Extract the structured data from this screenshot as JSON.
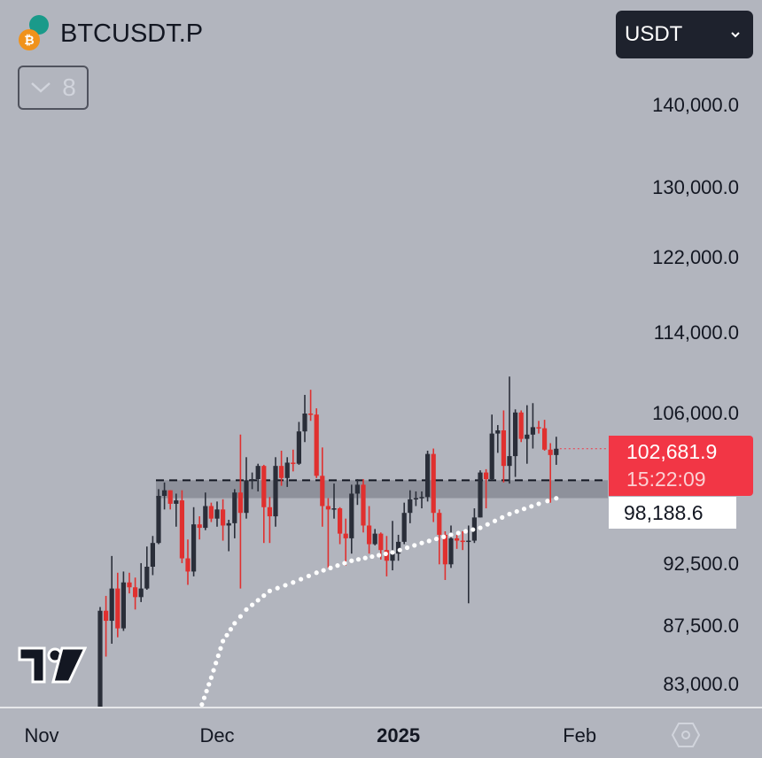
{
  "header": {
    "symbol": "BTCUSDT.P",
    "indicator_count": "8",
    "currency": "USDT",
    "icons": [
      "bitcoin-icon",
      "tether-icon",
      "chevron-down-icon"
    ]
  },
  "price_tags": {
    "last_price": "102,681.9",
    "countdown": "15:22:09",
    "indicator_value": "98,188.6"
  },
  "colors": {
    "background": "#b2b5be",
    "up": "#2a2e39",
    "down": "#e0302f",
    "last_price_tag": "#f23645",
    "indicator_dots": "#ffffff",
    "zone": "#7f828c"
  },
  "chart_data": {
    "type": "candlestick",
    "y_scale": "log",
    "y_tick_labels": [
      "140,000.0",
      "130,000.0",
      "122,000.0",
      "114,000.0",
      "106,000.0",
      "92,500.0",
      "87,500.0",
      "83,000.0"
    ],
    "y_ticks": [
      140000,
      130000,
      122000,
      114000,
      106000,
      92500,
      87500,
      83000
    ],
    "x_tick_labels": [
      {
        "label": "Nov",
        "date": "2024-11-01",
        "bold": false
      },
      {
        "label": "Dec",
        "date": "2024-12-01",
        "bold": false
      },
      {
        "label": "2025",
        "date": "2025-01-01",
        "bold": true
      },
      {
        "label": "Feb",
        "date": "2025-02-01",
        "bold": false
      }
    ],
    "grid": false,
    "candles_columns": [
      "date",
      "open",
      "high",
      "low",
      "close"
    ],
    "candles": [
      [
        "2024-11-11",
        80400,
        89000,
        76000,
        88700
      ],
      [
        "2024-11-12",
        88700,
        89900,
        85100,
        87900
      ],
      [
        "2024-11-13",
        87900,
        93200,
        86100,
        90500
      ],
      [
        "2024-11-14",
        90500,
        91800,
        86600,
        87300
      ],
      [
        "2024-11-15",
        87300,
        91900,
        87100,
        91000
      ],
      [
        "2024-11-16",
        91000,
        91800,
        90100,
        90600
      ],
      [
        "2024-11-17",
        90600,
        91400,
        88800,
        89800
      ],
      [
        "2024-11-18",
        89800,
        92600,
        89400,
        90500
      ],
      [
        "2024-11-19",
        90500,
        94000,
        90400,
        92300
      ],
      [
        "2024-11-20",
        92300,
        94900,
        91600,
        94300
      ],
      [
        "2024-11-21",
        94300,
        99000,
        94200,
        98400
      ],
      [
        "2024-11-22",
        98400,
        99600,
        97200,
        98900
      ],
      [
        "2024-11-23",
        98900,
        98900,
        97200,
        97700
      ],
      [
        "2024-11-24",
        97700,
        98600,
        95700,
        98000
      ],
      [
        "2024-11-25",
        98000,
        98900,
        92600,
        93000
      ],
      [
        "2024-11-26",
        93000,
        94600,
        90800,
        91900
      ],
      [
        "2024-11-27",
        91900,
        97400,
        91500,
        95900
      ],
      [
        "2024-11-28",
        95900,
        96600,
        94600,
        95600
      ],
      [
        "2024-11-29",
        95600,
        98700,
        95400,
        97500
      ],
      [
        "2024-11-30",
        97500,
        97800,
        96100,
        96400
      ],
      [
        "2024-12-01",
        96400,
        97900,
        95700,
        97200
      ],
      [
        "2024-12-02",
        97200,
        98100,
        94500,
        95800
      ],
      [
        "2024-12-03",
        95800,
        96300,
        93600,
        96000
      ],
      [
        "2024-12-04",
        96000,
        99000,
        94700,
        98700
      ],
      [
        "2024-12-05",
        98700,
        104000,
        90500,
        96900
      ],
      [
        "2024-12-06",
        96900,
        101900,
        96400,
        99800
      ],
      [
        "2024-12-07",
        99800,
        100500,
        99000,
        99900
      ],
      [
        "2024-12-08",
        99900,
        101300,
        98800,
        101100
      ],
      [
        "2024-12-09",
        101100,
        101200,
        94300,
        97400
      ],
      [
        "2024-12-10",
        97400,
        98300,
        94300,
        96600
      ],
      [
        "2024-12-11",
        96600,
        101900,
        95700,
        101100
      ],
      [
        "2024-12-12",
        101100,
        102500,
        99300,
        100000
      ],
      [
        "2024-12-13",
        100000,
        101900,
        99200,
        101400
      ],
      [
        "2024-12-14",
        101400,
        102600,
        100600,
        101300
      ],
      [
        "2024-12-15",
        101300,
        105200,
        101200,
        104300
      ],
      [
        "2024-12-16",
        104300,
        107800,
        103300,
        106000
      ],
      [
        "2024-12-17",
        106000,
        108300,
        105300,
        105900
      ],
      [
        "2024-12-18",
        105900,
        106500,
        100000,
        100200
      ],
      [
        "2024-12-19",
        100200,
        102800,
        95700,
        97500
      ],
      [
        "2024-12-20",
        97500,
        98200,
        92200,
        97200
      ],
      [
        "2024-12-21",
        97200,
        99500,
        96400,
        97300
      ],
      [
        "2024-12-22",
        97300,
        97400,
        94200,
        95100
      ],
      [
        "2024-12-23",
        95100,
        96400,
        92400,
        94700
      ],
      [
        "2024-12-24",
        94700,
        99400,
        93400,
        98600
      ],
      [
        "2024-12-25",
        98600,
        99900,
        97600,
        99400
      ],
      [
        "2024-12-26",
        99400,
        99900,
        95200,
        95800
      ],
      [
        "2024-12-27",
        95800,
        97500,
        93400,
        94200
      ],
      [
        "2024-12-28",
        94200,
        95500,
        94100,
        95100
      ],
      [
        "2024-12-29",
        95100,
        95200,
        92900,
        93700
      ],
      [
        "2024-12-30",
        93700,
        94900,
        91500,
        92800
      ],
      [
        "2024-12-31",
        92800,
        96200,
        92000,
        93400
      ],
      [
        "2025-01-01",
        93400,
        95000,
        92800,
        94400
      ],
      [
        "2025-01-02",
        94400,
        97800,
        94200,
        96900
      ],
      [
        "2025-01-03",
        96900,
        98900,
        96000,
        98100
      ],
      [
        "2025-01-04",
        98100,
        98800,
        97500,
        98200
      ],
      [
        "2025-01-05",
        98200,
        98800,
        97300,
        98300
      ],
      [
        "2025-01-06",
        98300,
        102500,
        97900,
        102200
      ],
      [
        "2025-01-07",
        102200,
        102700,
        96100,
        96900
      ],
      [
        "2025-01-08",
        96900,
        97200,
        92500,
        95000
      ],
      [
        "2025-01-09",
        95000,
        95300,
        91200,
        92500
      ],
      [
        "2025-01-10",
        92500,
        95800,
        92200,
        94700
      ],
      [
        "2025-01-11",
        94700,
        95000,
        93800,
        94500
      ],
      [
        "2025-01-12",
        94500,
        95300,
        93700,
        94400
      ],
      [
        "2025-01-13",
        94400,
        95800,
        89300,
        94500
      ],
      [
        "2025-01-14",
        94500,
        97300,
        94300,
        96500
      ],
      [
        "2025-01-15",
        96500,
        100700,
        96500,
        100500
      ],
      [
        "2025-01-16",
        100500,
        100800,
        97300,
        99900
      ],
      [
        "2025-01-17",
        99900,
        105900,
        99800,
        104100
      ],
      [
        "2025-01-18",
        104100,
        104900,
        102300,
        104400
      ],
      [
        "2025-01-19",
        104400,
        106300,
        99600,
        101100
      ],
      [
        "2025-01-20",
        101100,
        109600,
        99500,
        102000
      ],
      [
        "2025-01-21",
        102000,
        106400,
        100100,
        106100
      ],
      [
        "2025-01-22",
        106100,
        106300,
        103300,
        103600
      ],
      [
        "2025-01-23",
        103600,
        106800,
        101300,
        104000
      ],
      [
        "2025-01-24",
        104000,
        107000,
        102700,
        104700
      ],
      [
        "2025-01-25",
        104700,
        105300,
        104100,
        104600
      ],
      [
        "2025-01-26",
        104600,
        105400,
        102500,
        102600
      ],
      [
        "2025-01-27",
        102600,
        103200,
        97800,
        102100
      ],
      [
        "2025-01-28",
        102100,
        103800,
        101200,
        102682
      ]
    ],
    "indicator_line": {
      "style": "dotted",
      "points": [
        [
          "2024-11-28",
          81000
        ],
        [
          "2024-11-30",
          83500
        ],
        [
          "2024-12-02",
          86300
        ],
        [
          "2024-12-04",
          87700
        ],
        [
          "2024-12-06",
          88800
        ],
        [
          "2024-12-10",
          90300
        ],
        [
          "2024-12-14",
          91000
        ],
        [
          "2024-12-18",
          91800
        ],
        [
          "2024-12-24",
          92800
        ],
        [
          "2024-12-31",
          93500
        ],
        [
          "2025-01-05",
          94300
        ],
        [
          "2025-01-10",
          95000
        ],
        [
          "2025-01-15",
          95600
        ],
        [
          "2025-01-20",
          96800
        ],
        [
          "2025-01-25",
          97700
        ],
        [
          "2025-01-28",
          98189
        ]
      ]
    },
    "support_zone": {
      "from": "2024-11-21",
      "low": 98200,
      "high": 99800
    },
    "dashed_level": 99800,
    "last_price": 102681.9
  }
}
